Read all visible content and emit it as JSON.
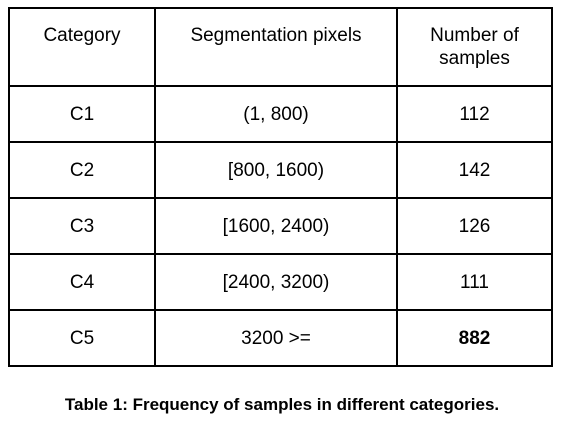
{
  "table": {
    "headers": [
      "Category",
      "Segmentation pixels",
      "Number of samples"
    ],
    "rows": [
      [
        "C1",
        "(1, 800)",
        "112"
      ],
      [
        "C2",
        "[800, 1600)",
        "142"
      ],
      [
        "C3",
        "[1600, 2400)",
        "126"
      ],
      [
        "C4",
        "[2400, 3200)",
        "111"
      ],
      [
        "C5",
        "3200 >=",
        "882"
      ]
    ]
  },
  "caption": "Table 1: Frequency of samples in different categories."
}
